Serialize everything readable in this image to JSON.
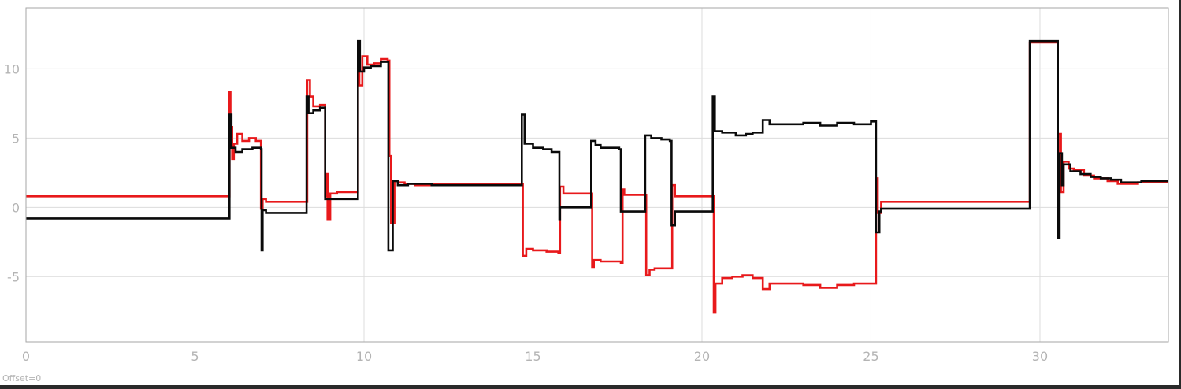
{
  "status": {
    "offset_text": "Offset=0"
  },
  "colors": {
    "background": "#ffffff",
    "grid": "#dcdcdc",
    "axes": "#a6a6a6",
    "tick_text": "#b4b4b4",
    "frame": "#2a2a2a"
  },
  "chart_data": {
    "type": "line",
    "title": "",
    "xlabel": "",
    "ylabel": "",
    "xlim": [
      0,
      33.8
    ],
    "ylim": [
      -9.7,
      14.4
    ],
    "grid": true,
    "xticks": [
      0,
      5,
      10,
      15,
      20,
      25,
      30
    ],
    "yticks": [
      10,
      5,
      0,
      -5
    ],
    "xtick_labels": [
      "0",
      "5",
      "10",
      "15",
      "20",
      "25",
      "30"
    ],
    "ytick_labels": [
      "10",
      "5",
      "0",
      "-5"
    ],
    "series": [
      {
        "color": "#e8191b",
        "step": true,
        "points": [
          [
            0,
            0.8
          ],
          [
            6.0,
            0.8
          ],
          [
            6.02,
            8.3
          ],
          [
            6.05,
            5.8
          ],
          [
            6.1,
            3.5
          ],
          [
            6.15,
            4.6
          ],
          [
            6.25,
            5.3
          ],
          [
            6.4,
            4.8
          ],
          [
            6.6,
            5.0
          ],
          [
            6.8,
            4.8
          ],
          [
            6.95,
            -0.1
          ],
          [
            7.0,
            0.6
          ],
          [
            7.1,
            0.4
          ],
          [
            7.5,
            0.4
          ],
          [
            8.3,
            0.4
          ],
          [
            8.32,
            9.2
          ],
          [
            8.4,
            8.0
          ],
          [
            8.5,
            7.3
          ],
          [
            8.7,
            7.4
          ],
          [
            8.85,
            0.8
          ],
          [
            8.9,
            2.4
          ],
          [
            8.92,
            -0.9
          ],
          [
            9.0,
            1.0
          ],
          [
            9.2,
            1.1
          ],
          [
            9.8,
            1.1
          ],
          [
            9.82,
            11.0
          ],
          [
            9.86,
            8.8
          ],
          [
            9.95,
            10.9
          ],
          [
            10.1,
            10.3
          ],
          [
            10.3,
            10.4
          ],
          [
            10.5,
            10.7
          ],
          [
            10.7,
            10.6
          ],
          [
            10.75,
            3.7
          ],
          [
            10.8,
            -1.1
          ],
          [
            10.9,
            1.9
          ],
          [
            11.0,
            1.8
          ],
          [
            11.2,
            1.7
          ],
          [
            11.5,
            1.6
          ],
          [
            12.0,
            1.7
          ],
          [
            14.6,
            1.7
          ],
          [
            14.7,
            -3.5
          ],
          [
            14.8,
            -3.0
          ],
          [
            15.0,
            -3.1
          ],
          [
            15.4,
            -3.2
          ],
          [
            15.75,
            -3.3
          ],
          [
            15.8,
            1.5
          ],
          [
            15.9,
            1.0
          ],
          [
            16.7,
            1.0
          ],
          [
            16.75,
            -4.3
          ],
          [
            16.8,
            -3.8
          ],
          [
            17.0,
            -3.9
          ],
          [
            17.3,
            -3.9
          ],
          [
            17.6,
            -4.0
          ],
          [
            17.65,
            1.3
          ],
          [
            17.7,
            0.9
          ],
          [
            18.3,
            0.9
          ],
          [
            18.35,
            -4.9
          ],
          [
            18.45,
            -4.5
          ],
          [
            18.6,
            -4.4
          ],
          [
            18.9,
            -4.4
          ],
          [
            19.1,
            -4.4
          ],
          [
            19.12,
            1.6
          ],
          [
            19.2,
            0.8
          ],
          [
            20.3,
            0.8
          ],
          [
            20.35,
            -7.6
          ],
          [
            20.4,
            -5.5
          ],
          [
            20.6,
            -5.1
          ],
          [
            20.9,
            -5.0
          ],
          [
            21.2,
            -4.9
          ],
          [
            21.5,
            -5.1
          ],
          [
            21.8,
            -5.9
          ],
          [
            22.0,
            -5.5
          ],
          [
            22.5,
            -5.5
          ],
          [
            23.0,
            -5.6
          ],
          [
            23.5,
            -5.8
          ],
          [
            24.0,
            -5.6
          ],
          [
            24.5,
            -5.5
          ],
          [
            25.0,
            -5.5
          ],
          [
            25.15,
            2.1
          ],
          [
            25.2,
            -0.4
          ],
          [
            25.3,
            0.4
          ],
          [
            25.5,
            0.4
          ],
          [
            29.6,
            0.4
          ],
          [
            29.7,
            11.9
          ],
          [
            30.5,
            11.9
          ],
          [
            30.52,
            2.1
          ],
          [
            30.55,
            5.3
          ],
          [
            30.62,
            1.1
          ],
          [
            30.7,
            3.3
          ],
          [
            30.85,
            2.8
          ],
          [
            31.0,
            2.7
          ],
          [
            31.3,
            2.3
          ],
          [
            31.6,
            2.1
          ],
          [
            32.0,
            1.9
          ],
          [
            32.3,
            1.7
          ],
          [
            32.6,
            1.7
          ],
          [
            32.9,
            1.8
          ],
          [
            33.2,
            1.8
          ],
          [
            33.8,
            1.8
          ]
        ]
      },
      {
        "color": "#0a0a0a",
        "step": true,
        "points": [
          [
            0,
            -0.8
          ],
          [
            6.0,
            -0.8
          ],
          [
            6.02,
            6.7
          ],
          [
            6.08,
            4.3
          ],
          [
            6.2,
            4.0
          ],
          [
            6.4,
            4.2
          ],
          [
            6.7,
            4.3
          ],
          [
            6.95,
            4.2
          ],
          [
            6.97,
            -3.1
          ],
          [
            7.0,
            -0.2
          ],
          [
            7.1,
            -0.4
          ],
          [
            8.2,
            -0.4
          ],
          [
            8.3,
            8.0
          ],
          [
            8.36,
            6.8
          ],
          [
            8.5,
            7.0
          ],
          [
            8.7,
            7.2
          ],
          [
            8.85,
            0.6
          ],
          [
            9.0,
            0.6
          ],
          [
            9.8,
            0.6
          ],
          [
            9.82,
            12.0
          ],
          [
            9.88,
            9.8
          ],
          [
            10.0,
            10.1
          ],
          [
            10.2,
            10.2
          ],
          [
            10.5,
            10.5
          ],
          [
            10.7,
            10.5
          ],
          [
            10.72,
            -3.1
          ],
          [
            10.85,
            1.9
          ],
          [
            11.0,
            1.6
          ],
          [
            11.3,
            1.7
          ],
          [
            11.7,
            1.7
          ],
          [
            12.0,
            1.6
          ],
          [
            14.65,
            1.6
          ],
          [
            14.67,
            6.7
          ],
          [
            14.75,
            4.6
          ],
          [
            15.0,
            4.3
          ],
          [
            15.3,
            4.2
          ],
          [
            15.55,
            4.0
          ],
          [
            15.75,
            4.0
          ],
          [
            15.78,
            -0.9
          ],
          [
            15.8,
            0.0
          ],
          [
            16.7,
            0.0
          ],
          [
            16.72,
            4.8
          ],
          [
            16.85,
            4.5
          ],
          [
            17.0,
            4.3
          ],
          [
            17.3,
            4.3
          ],
          [
            17.55,
            4.2
          ],
          [
            17.6,
            -0.3
          ],
          [
            17.7,
            -0.3
          ],
          [
            18.3,
            -0.3
          ],
          [
            18.32,
            5.2
          ],
          [
            18.5,
            5.0
          ],
          [
            18.8,
            4.9
          ],
          [
            19.05,
            4.8
          ],
          [
            19.1,
            -1.3
          ],
          [
            19.2,
            -0.3
          ],
          [
            20.3,
            -0.3
          ],
          [
            20.32,
            8.0
          ],
          [
            20.38,
            5.5
          ],
          [
            20.6,
            5.4
          ],
          [
            21.0,
            5.2
          ],
          [
            21.3,
            5.3
          ],
          [
            21.5,
            5.4
          ],
          [
            21.8,
            6.3
          ],
          [
            22.0,
            6.0
          ],
          [
            22.5,
            6.0
          ],
          [
            23.0,
            6.1
          ],
          [
            23.5,
            5.9
          ],
          [
            24.0,
            6.1
          ],
          [
            24.5,
            6.0
          ],
          [
            25.0,
            6.2
          ],
          [
            25.15,
            -1.8
          ],
          [
            25.25,
            -0.3
          ],
          [
            25.3,
            -0.1
          ],
          [
            29.6,
            -0.1
          ],
          [
            29.7,
            12.0
          ],
          [
            30.5,
            12.0
          ],
          [
            30.53,
            -2.2
          ],
          [
            30.58,
            3.9
          ],
          [
            30.65,
            1.6
          ],
          [
            30.7,
            3.1
          ],
          [
            30.9,
            2.6
          ],
          [
            31.2,
            2.4
          ],
          [
            31.5,
            2.2
          ],
          [
            31.8,
            2.1
          ],
          [
            32.1,
            2.0
          ],
          [
            32.4,
            1.8
          ],
          [
            32.7,
            1.8
          ],
          [
            33.0,
            1.9
          ],
          [
            33.8,
            1.9
          ]
        ]
      }
    ]
  }
}
